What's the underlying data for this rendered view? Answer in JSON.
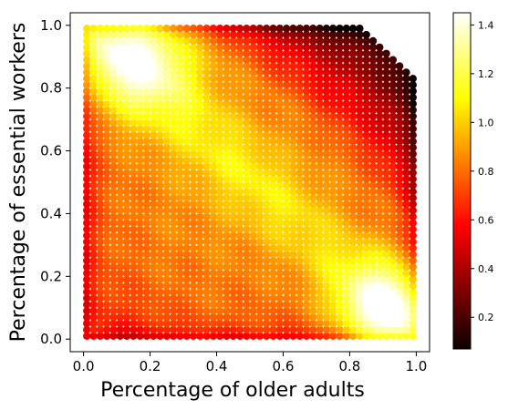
{
  "chart_data": {
    "type": "scatter",
    "title": "",
    "xlabel": "Percentage of older adults",
    "ylabel": "Percentage of essential workers",
    "xlim": [
      -0.04,
      1.04
    ],
    "ylim": [
      -0.04,
      1.04
    ],
    "xticks": [
      0.0,
      0.2,
      0.4,
      0.6,
      0.8,
      1.0
    ],
    "xtick_labels": [
      "0.0",
      "0.2",
      "0.4",
      "0.6",
      "0.8",
      "1.0"
    ],
    "yticks": [
      0.0,
      0.2,
      0.4,
      0.6,
      0.8,
      1.0
    ],
    "ytick_labels": [
      "0.0",
      "0.2",
      "0.4",
      "0.6",
      "0.8",
      "1.0"
    ],
    "grid": false,
    "colormap": "hot",
    "grid_x": {
      "start": 0.01,
      "stop": 0.99,
      "count": 50
    },
    "grid_y": {
      "start": 0.01,
      "stop": 0.99,
      "count": 50
    },
    "excluded_region": "upper-right corner (x + y > ~1.8) has no points",
    "value_range": [
      0.07,
      1.45
    ],
    "hotspots": [
      {
        "x": 0.15,
        "y": 0.91,
        "value": 1.4
      },
      {
        "x": 0.92,
        "y": 0.09,
        "value": 1.45
      }
    ],
    "colorbar": {
      "ticks": [
        0.2,
        0.4,
        0.6,
        0.8,
        1.0,
        1.2,
        1.4
      ],
      "tick_labels": [
        "0.2",
        "0.4",
        "0.6",
        "0.8",
        "1.0",
        "1.2",
        "1.4"
      ],
      "min": 0.07,
      "max": 1.45
    }
  }
}
